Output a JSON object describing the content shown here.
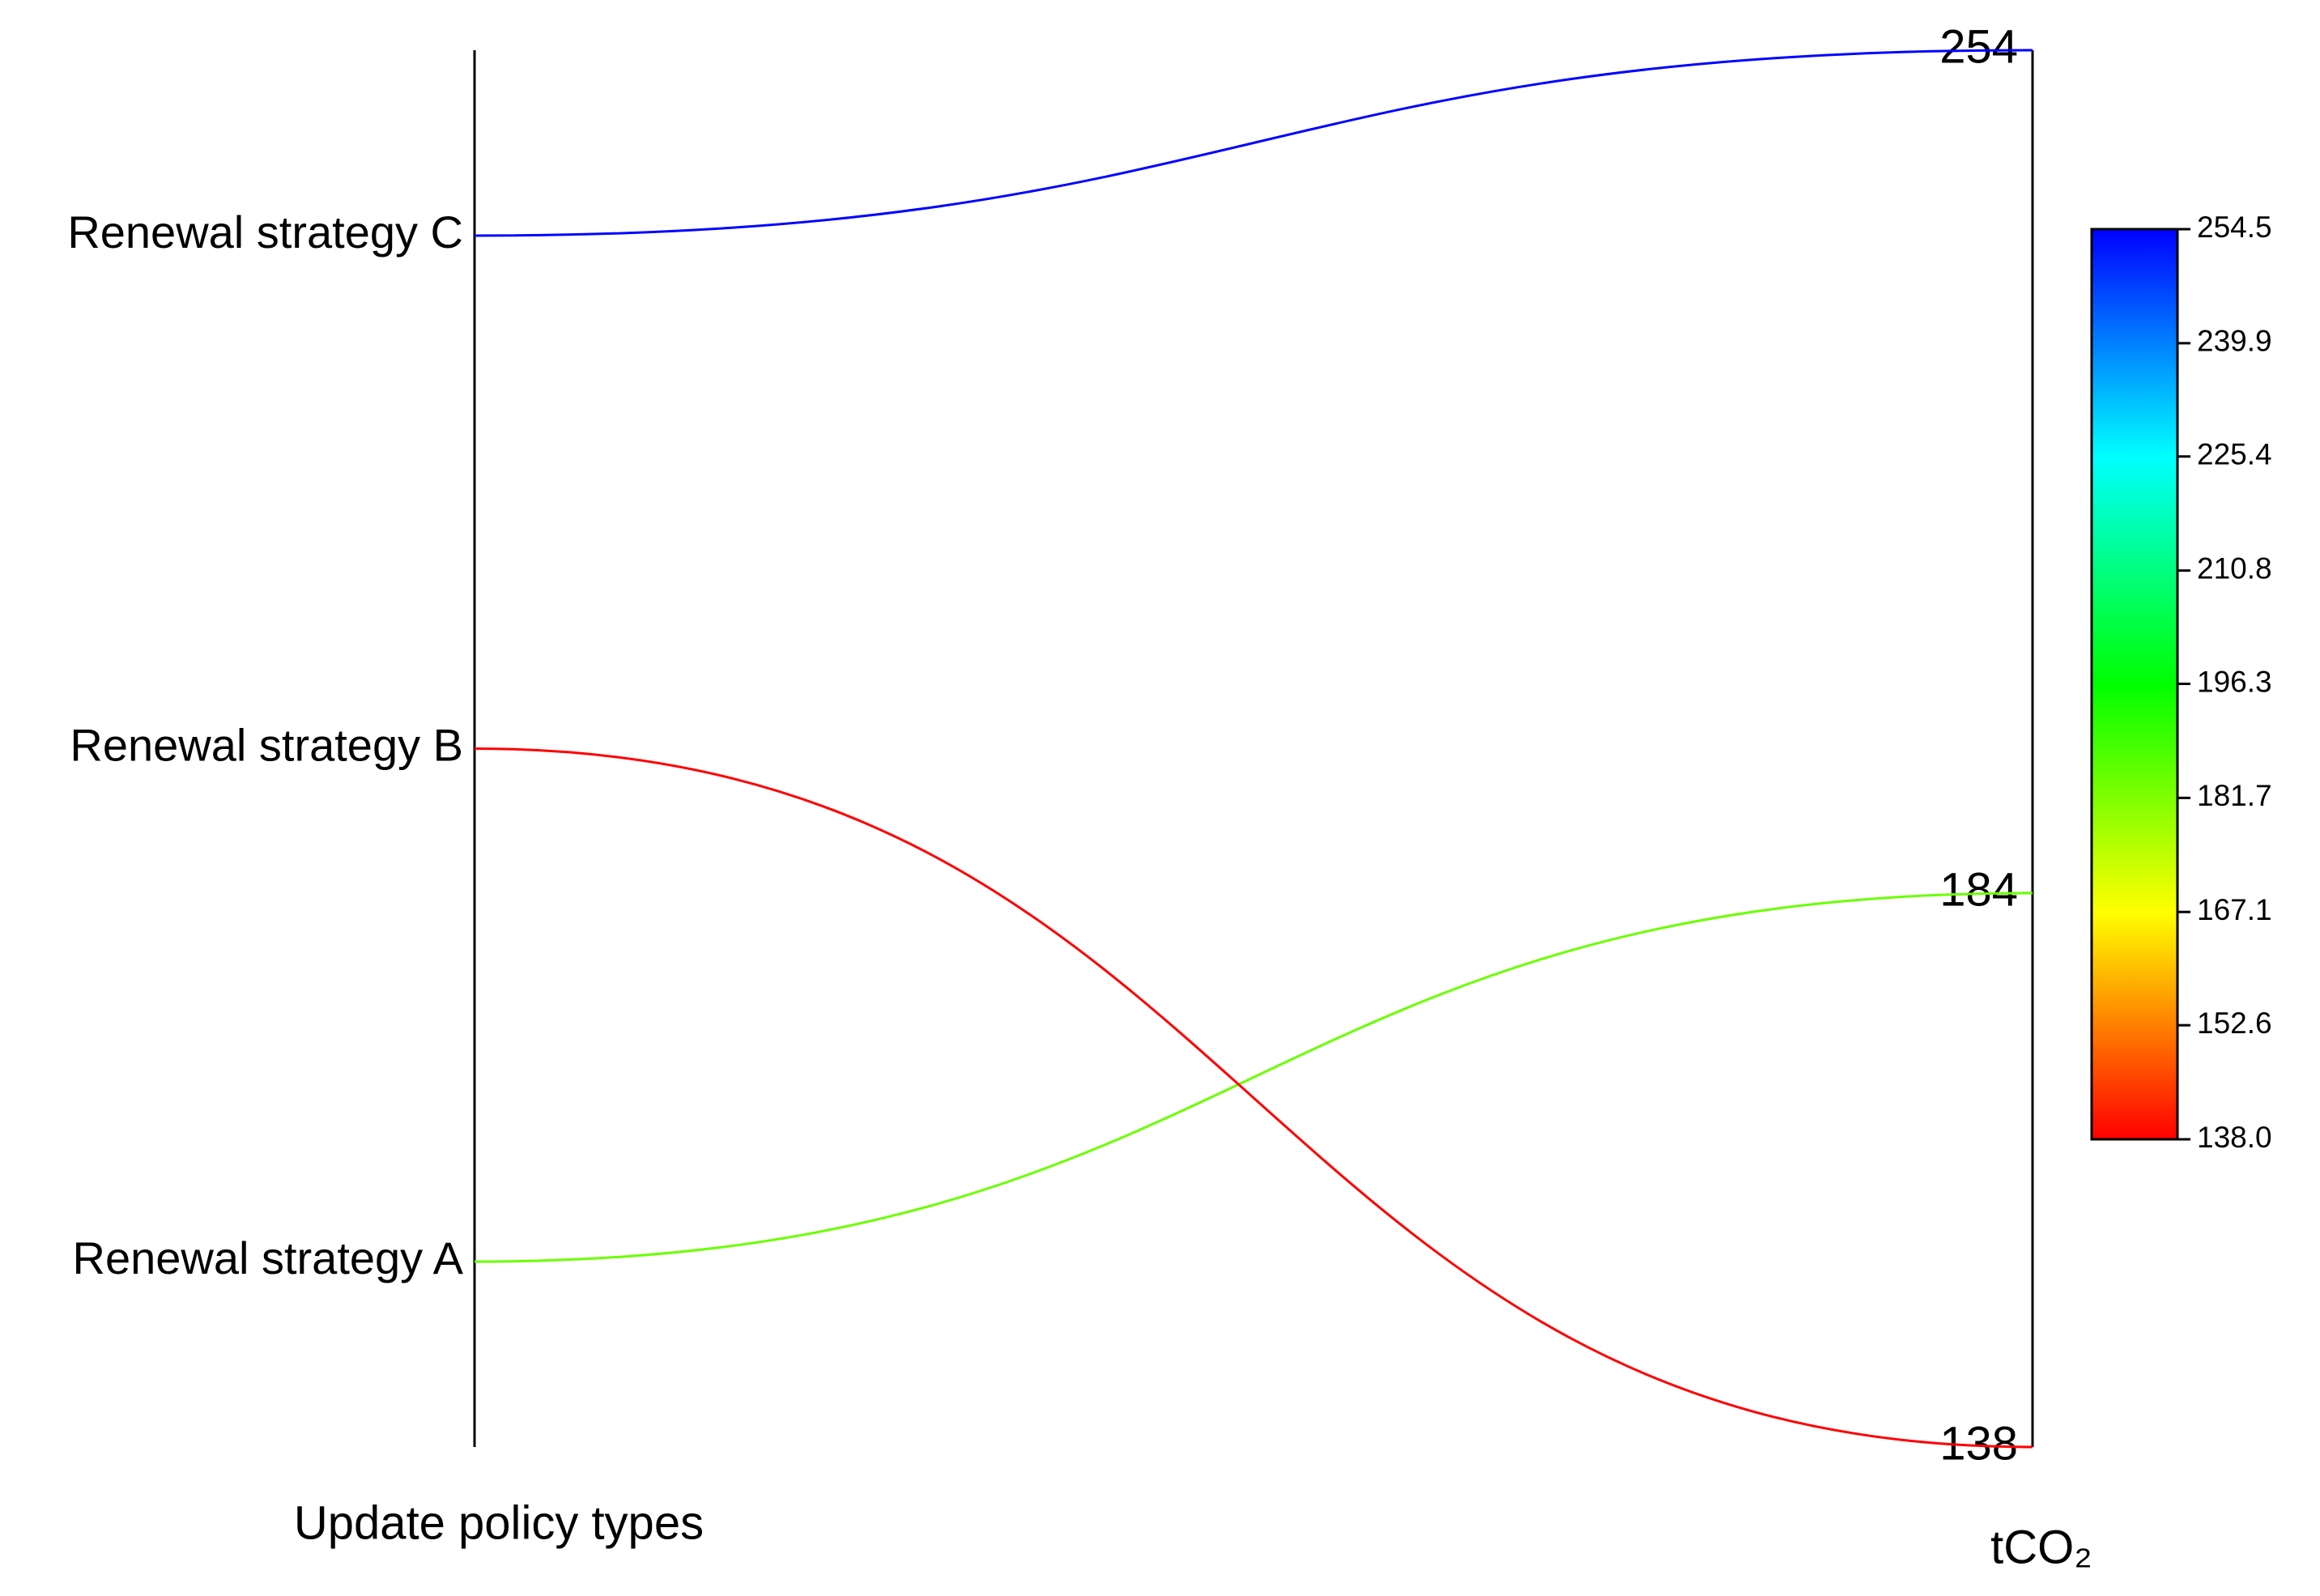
{
  "chart_data": {
    "type": "parallel",
    "x_label": "Update policy types",
    "y_label": "tCO₂",
    "categories": [
      "Renewal strategy A",
      "Renewal strategy B",
      "Renewal strategy C"
    ],
    "values": [
      184,
      138,
      254
    ],
    "ylim": [
      138,
      254
    ],
    "yticks": [
      138,
      184,
      254
    ],
    "colormap": [
      "#ff0000",
      "#ffff00",
      "#00ff00",
      "#00ffff",
      "#0000ff"
    ],
    "colorbar_lim": [
      138,
      254.5
    ],
    "colorbar_ticks": [
      {
        "value": 138,
        "label": "138.0"
      },
      152.6,
      167.1,
      181.7,
      196.3,
      210.8,
      225.4,
      239.9,
      254.5
    ]
  }
}
